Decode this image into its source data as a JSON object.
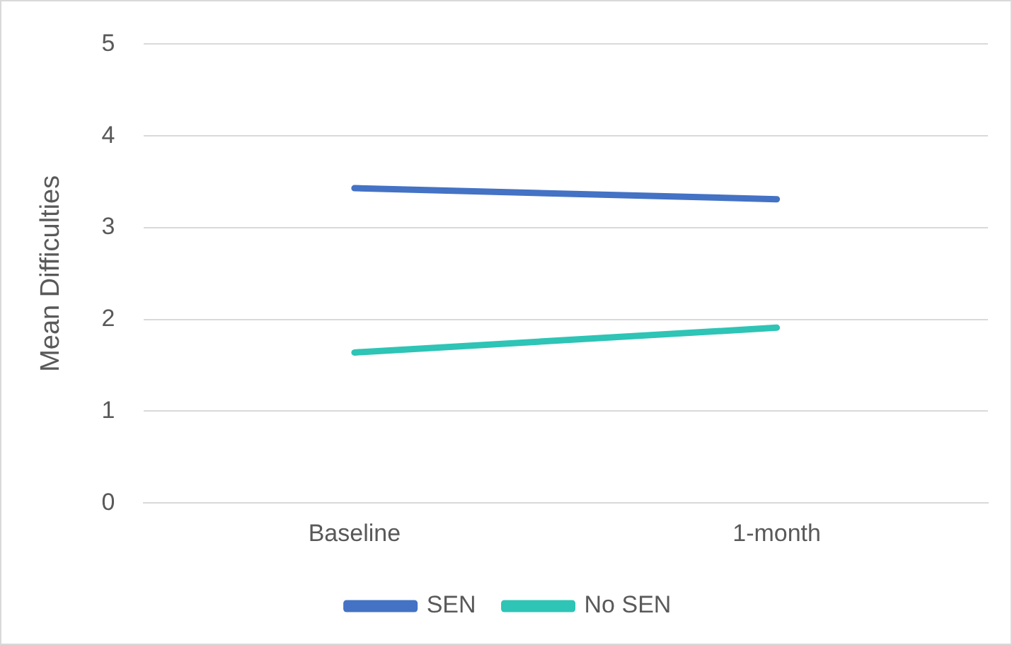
{
  "chart_data": {
    "type": "line",
    "ylabel": "Mean Difficulties",
    "categories": [
      "Baseline",
      "1-month"
    ],
    "series": [
      {
        "name": "SEN",
        "color": "#4472c4",
        "values": [
          3.43,
          3.31
        ]
      },
      {
        "name": "No SEN",
        "color": "#2ec4b6",
        "values": [
          1.64,
          1.91
        ]
      }
    ],
    "ylim": [
      0,
      5
    ],
    "yticks": [
      0,
      1,
      2,
      3,
      4,
      5
    ],
    "grid": "y",
    "legend": "bottom",
    "marker": "none"
  }
}
